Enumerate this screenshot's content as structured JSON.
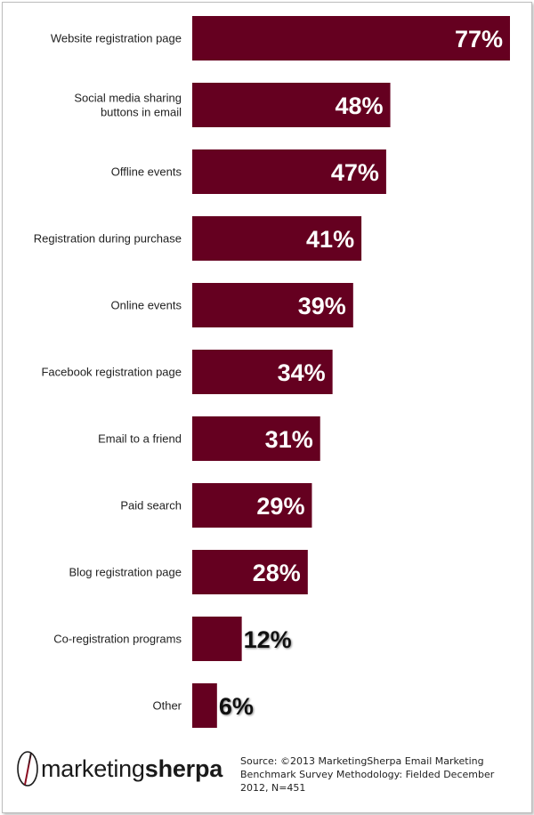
{
  "chart_data": {
    "type": "bar",
    "orientation": "horizontal",
    "categories": [
      [
        "Website registration page"
      ],
      [
        "Social media sharing",
        "buttons in email"
      ],
      [
        "Offline events"
      ],
      [
        "Registration during purchase"
      ],
      [
        "Online events"
      ],
      [
        "Facebook registration page"
      ],
      [
        "Email to a friend"
      ],
      [
        "Paid search"
      ],
      [
        "Blog registration page"
      ],
      [
        "Co-registration programs"
      ],
      [
        "Other"
      ]
    ],
    "values": [
      77,
      48,
      47,
      41,
      39,
      34,
      31,
      29,
      28,
      12,
      6
    ],
    "value_labels": [
      "77%",
      "48%",
      "47%",
      "41%",
      "39%",
      "34%",
      "31%",
      "29%",
      "28%",
      "12%",
      "6%"
    ],
    "bar_color": "#650020",
    "grid": false,
    "legend": false
  },
  "logo": {
    "prefix": "marketing",
    "suffix": "sherpa"
  },
  "source_text": "Source: ©2013 MarketingSherpa Email Marketing Benchmark Survey Methodology: Fielded December 2012, N=451"
}
